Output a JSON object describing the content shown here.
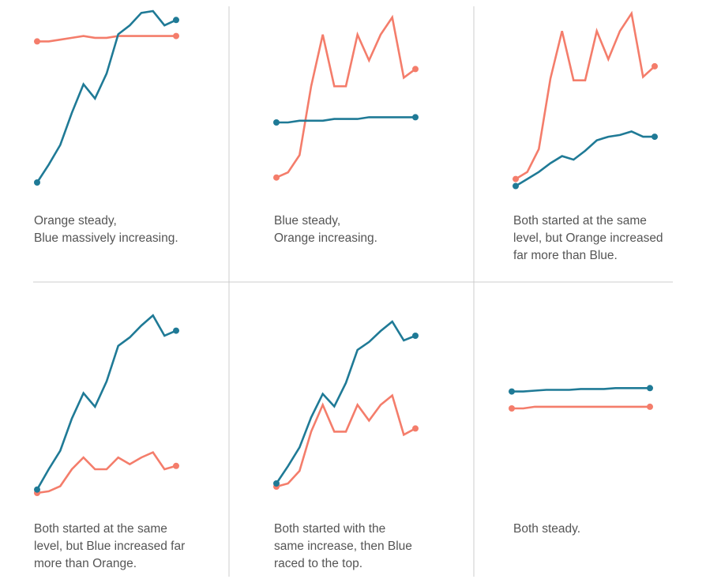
{
  "colors": {
    "blue": "#1f7a96",
    "orange": "#f47d6b",
    "divider": "#cccccc",
    "text": "#555555"
  },
  "chart_data": [
    {
      "type": "line",
      "x": [
        0,
        1,
        2,
        3,
        4,
        5,
        6,
        7,
        8,
        9,
        10,
        11,
        12
      ],
      "ylim": [
        0,
        100
      ],
      "series": [
        {
          "color": "blue",
          "values": [
            4,
            14,
            25,
            43,
            59,
            51,
            65,
            87,
            92,
            99,
            100,
            92,
            95
          ]
        },
        {
          "color": "orange",
          "values": [
            83,
            83,
            84,
            85,
            86,
            85,
            85,
            86,
            86,
            86,
            86,
            86,
            86
          ]
        }
      ],
      "caption_lines": [
        "Orange steady,",
        "Blue massively increasing."
      ]
    },
    {
      "type": "line",
      "x": [
        0,
        1,
        2,
        3,
        4,
        5,
        6,
        7,
        8,
        9,
        10,
        11,
        12
      ],
      "ylim": [
        0,
        100
      ],
      "series": [
        {
          "color": "blue",
          "values": [
            39,
            39,
            40,
            40,
            40,
            41,
            41,
            41,
            42,
            42,
            42,
            42,
            42
          ]
        },
        {
          "color": "orange",
          "values": [
            7,
            10,
            20,
            60,
            90,
            60,
            60,
            90,
            75,
            90,
            100,
            65,
            70
          ]
        }
      ],
      "caption_lines": [
        "Blue steady,",
        "Orange increasing."
      ]
    },
    {
      "type": "line",
      "x": [
        0,
        1,
        2,
        3,
        4,
        5,
        6,
        7,
        8,
        9,
        10,
        11,
        12
      ],
      "ylim": [
        0,
        100
      ],
      "series": [
        {
          "color": "blue",
          "values": [
            2,
            6,
            10,
            15,
            19,
            17,
            22,
            28,
            30,
            31,
            33,
            30,
            30
          ]
        },
        {
          "color": "orange",
          "values": [
            6,
            10,
            23,
            63,
            90,
            62,
            62,
            90,
            74,
            90,
            100,
            64,
            70
          ]
        }
      ],
      "caption_lines": [
        "Both started at the same",
        "level, but Orange increased",
        "far more than Blue."
      ]
    },
    {
      "type": "line",
      "x": [
        0,
        1,
        2,
        3,
        4,
        5,
        6,
        7,
        8,
        9,
        10,
        11,
        12
      ],
      "ylim": [
        0,
        100
      ],
      "series": [
        {
          "color": "blue",
          "values": [
            2,
            14,
            25,
            44,
            59,
            51,
            66,
            87,
            92,
            99,
            105,
            93,
            96
          ]
        },
        {
          "color": "orange",
          "values": [
            0,
            1,
            4,
            14,
            21,
            14,
            14,
            21,
            17,
            21,
            24,
            14,
            16
          ]
        }
      ],
      "caption_lines": [
        "Both started at the same",
        "level, but Blue increased far",
        "more than Orange."
      ]
    },
    {
      "type": "line",
      "x": [
        0,
        1,
        2,
        3,
        4,
        5,
        6,
        7,
        8,
        9,
        10,
        11,
        12
      ],
      "ylim": [
        0,
        100
      ],
      "series": [
        {
          "color": "blue",
          "values": [
            2,
            13,
            25,
            44,
            59,
            51,
            66,
            87,
            92,
            99,
            105,
            93,
            96
          ]
        },
        {
          "color": "orange",
          "values": [
            0,
            2,
            10,
            35,
            52,
            35,
            35,
            52,
            42,
            52,
            58,
            33,
            37
          ]
        }
      ],
      "caption_lines": [
        "Both started with the",
        "same increase, then Blue",
        "raced to the top."
      ]
    },
    {
      "type": "line",
      "x": [
        0,
        1,
        2,
        3,
        4,
        5,
        6,
        7,
        8,
        9,
        10,
        11,
        12
      ],
      "ylim": [
        0,
        100
      ],
      "series": [
        {
          "color": "blue",
          "values": [
            60,
            60,
            60.5,
            61,
            61,
            61,
            61.5,
            61.5,
            61.5,
            62,
            62,
            62,
            62
          ]
        },
        {
          "color": "orange",
          "values": [
            50,
            50,
            51,
            51,
            51,
            51,
            51,
            51,
            51,
            51,
            51,
            51,
            51
          ]
        }
      ],
      "caption_lines": [
        "Both steady."
      ]
    }
  ]
}
